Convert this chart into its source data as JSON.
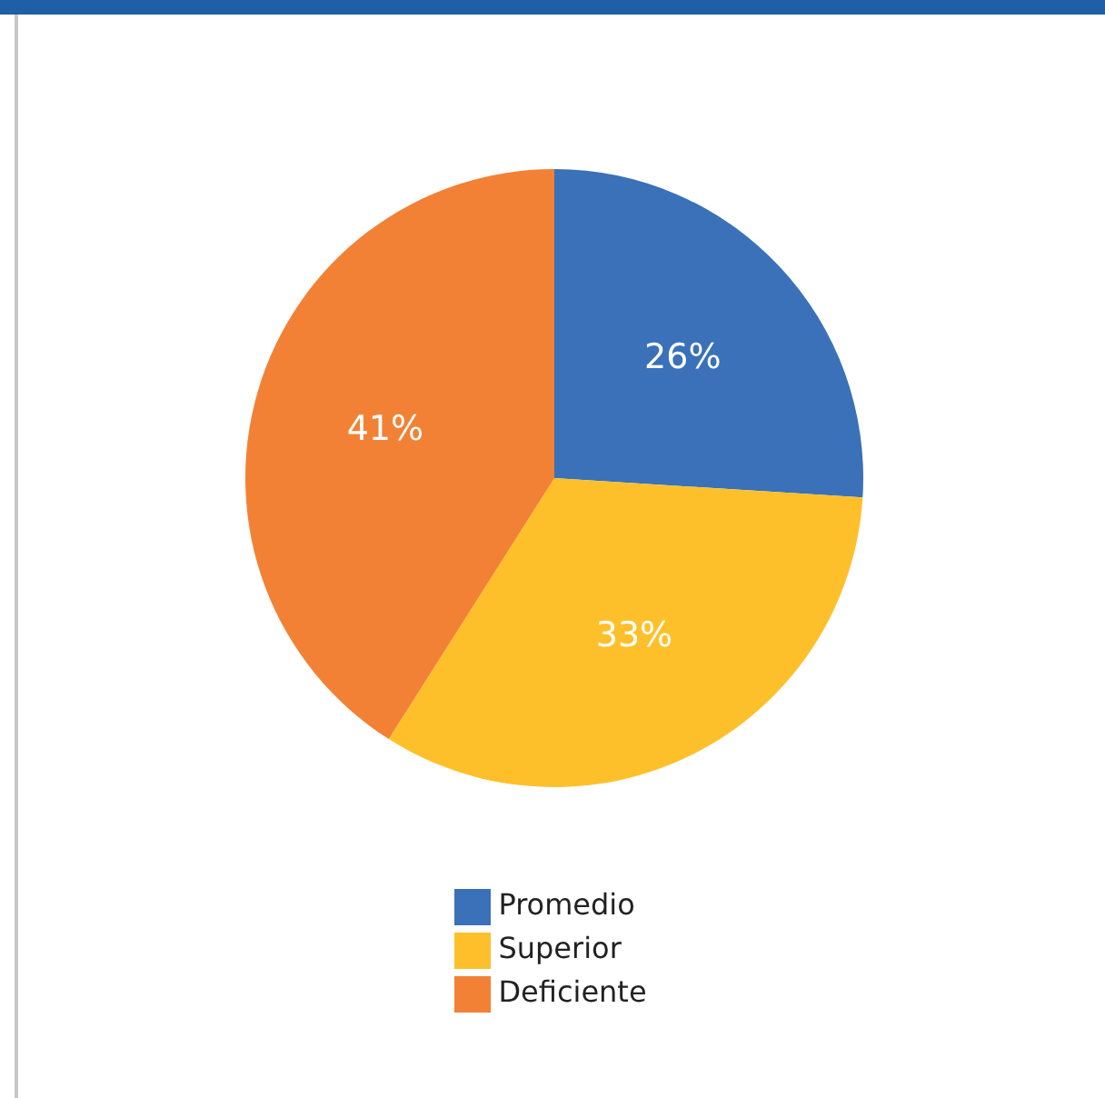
{
  "chart_data": {
    "type": "pie",
    "categories": [
      "Promedio",
      "Superior",
      "Deficiente"
    ],
    "values": [
      26,
      33,
      41
    ],
    "colors": [
      "#3a71b8",
      "#fec02a",
      "#f28135"
    ],
    "value_labels": [
      "26%",
      "33%",
      "41%"
    ],
    "legend": "bottom"
  }
}
